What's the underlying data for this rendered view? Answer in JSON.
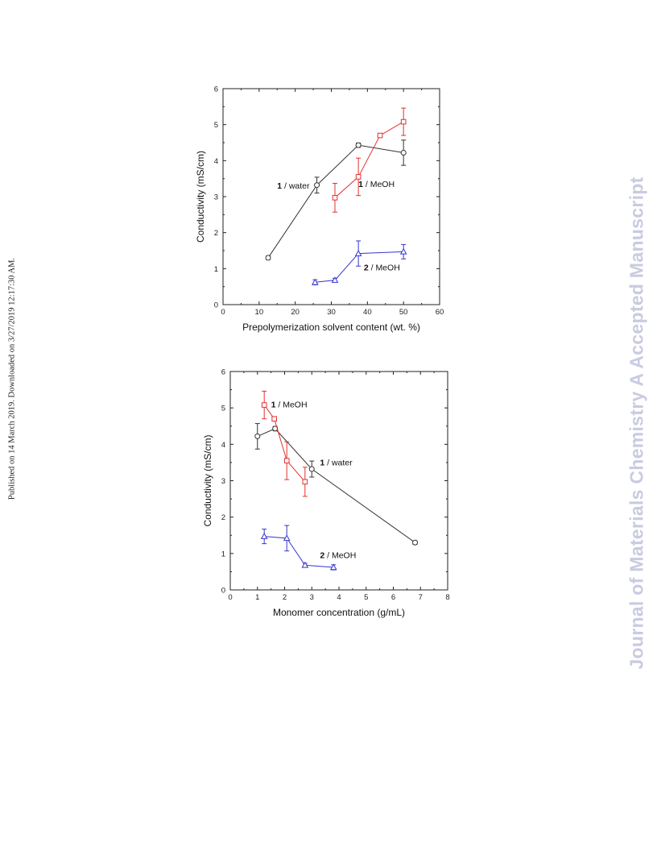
{
  "side_text": {
    "left": "Published on 14 March 2019. Downloaded on 3/27/2019 12:17:30 AM.",
    "right": "Journal of Materials Chemistry A Accepted Manuscript"
  },
  "colors": {
    "water": "#333333",
    "meoh1": "#e03030",
    "meoh2": "#3535d0"
  },
  "chart_data": [
    {
      "type": "scatter",
      "xlabel": "Prepolymerization solvent content (wt. %)",
      "ylabel": "Conductivity (mS/cm)",
      "xlim": [
        0,
        60
      ],
      "ylim": [
        0,
        6
      ],
      "xticks": [
        0,
        10,
        20,
        30,
        40,
        50,
        60
      ],
      "yticks": [
        0,
        1,
        2,
        3,
        4,
        5,
        6
      ],
      "grid": false,
      "series": [
        {
          "name": "1 / water",
          "marker": "circle",
          "color": "#333333",
          "points": [
            {
              "x": 12.5,
              "y": 1.3,
              "err": 0.05
            },
            {
              "x": 26,
              "y": 3.32,
              "err": 0.22
            },
            {
              "x": 37.5,
              "y": 4.43,
              "err": 0.06
            },
            {
              "x": 50,
              "y": 4.22,
              "err": 0.35
            }
          ]
        },
        {
          "name": "1 / MeOH",
          "marker": "square",
          "color": "#e03030",
          "points": [
            {
              "x": 31,
              "y": 2.97,
              "err": 0.4
            },
            {
              "x": 37.5,
              "y": 3.55,
              "err": 0.52
            },
            {
              "x": 43.5,
              "y": 4.7,
              "err": 0.04
            },
            {
              "x": 50,
              "y": 5.08,
              "err": 0.38
            }
          ]
        },
        {
          "name": "2 / MeOH",
          "marker": "triangle",
          "color": "#3535d0",
          "points": [
            {
              "x": 25.5,
              "y": 0.62,
              "err": 0.07
            },
            {
              "x": 31,
              "y": 0.68,
              "err": 0.05
            },
            {
              "x": 37.5,
              "y": 1.42,
              "err": 0.35
            },
            {
              "x": 50,
              "y": 1.47,
              "err": 0.2
            }
          ]
        }
      ],
      "annotations": [
        {
          "num": "1",
          "text": " / water",
          "x": 15,
          "y": 3.22
        },
        {
          "num": "1",
          "text": " / MeOH",
          "x": 37.5,
          "y": 3.27
        },
        {
          "num": "2",
          "text": " / MeOH",
          "x": 39,
          "y": 0.95
        }
      ]
    },
    {
      "type": "scatter",
      "xlabel": "Monomer concentration (g/mL)",
      "ylabel": "Conductivity (mS/cm)",
      "xlim": [
        0,
        8
      ],
      "ylim": [
        0,
        6
      ],
      "xticks": [
        0,
        1,
        2,
        3,
        4,
        5,
        6,
        7,
        8
      ],
      "yticks": [
        0,
        1,
        2,
        3,
        4,
        5,
        6
      ],
      "grid": false,
      "series": [
        {
          "name": "1 / water",
          "marker": "circle",
          "color": "#333333",
          "points": [
            {
              "x": 1.0,
              "y": 4.22,
              "err": 0.35
            },
            {
              "x": 1.65,
              "y": 4.43,
              "err": 0.06
            },
            {
              "x": 3.0,
              "y": 3.32,
              "err": 0.22
            },
            {
              "x": 6.8,
              "y": 1.3,
              "err": 0.05
            }
          ]
        },
        {
          "name": "1 / MeOH",
          "marker": "square",
          "color": "#e03030",
          "points": [
            {
              "x": 1.25,
              "y": 5.08,
              "err": 0.38
            },
            {
              "x": 1.62,
              "y": 4.7,
              "err": 0.04
            },
            {
              "x": 2.08,
              "y": 3.55,
              "err": 0.52
            },
            {
              "x": 2.75,
              "y": 2.97,
              "err": 0.4
            }
          ]
        },
        {
          "name": "2 / MeOH",
          "marker": "triangle",
          "color": "#3535d0",
          "points": [
            {
              "x": 1.25,
              "y": 1.47,
              "err": 0.2
            },
            {
              "x": 2.08,
              "y": 1.42,
              "err": 0.35
            },
            {
              "x": 2.75,
              "y": 0.68,
              "err": 0.05
            },
            {
              "x": 3.8,
              "y": 0.62,
              "err": 0.07
            }
          ]
        }
      ],
      "annotations": [
        {
          "num": "1",
          "text": " / MeOH",
          "x": 1.5,
          "y": 5.02
        },
        {
          "num": "1",
          "text": " / water",
          "x": 3.3,
          "y": 3.42
        },
        {
          "num": "2",
          "text": " / MeOH",
          "x": 3.3,
          "y": 0.88
        }
      ]
    }
  ]
}
